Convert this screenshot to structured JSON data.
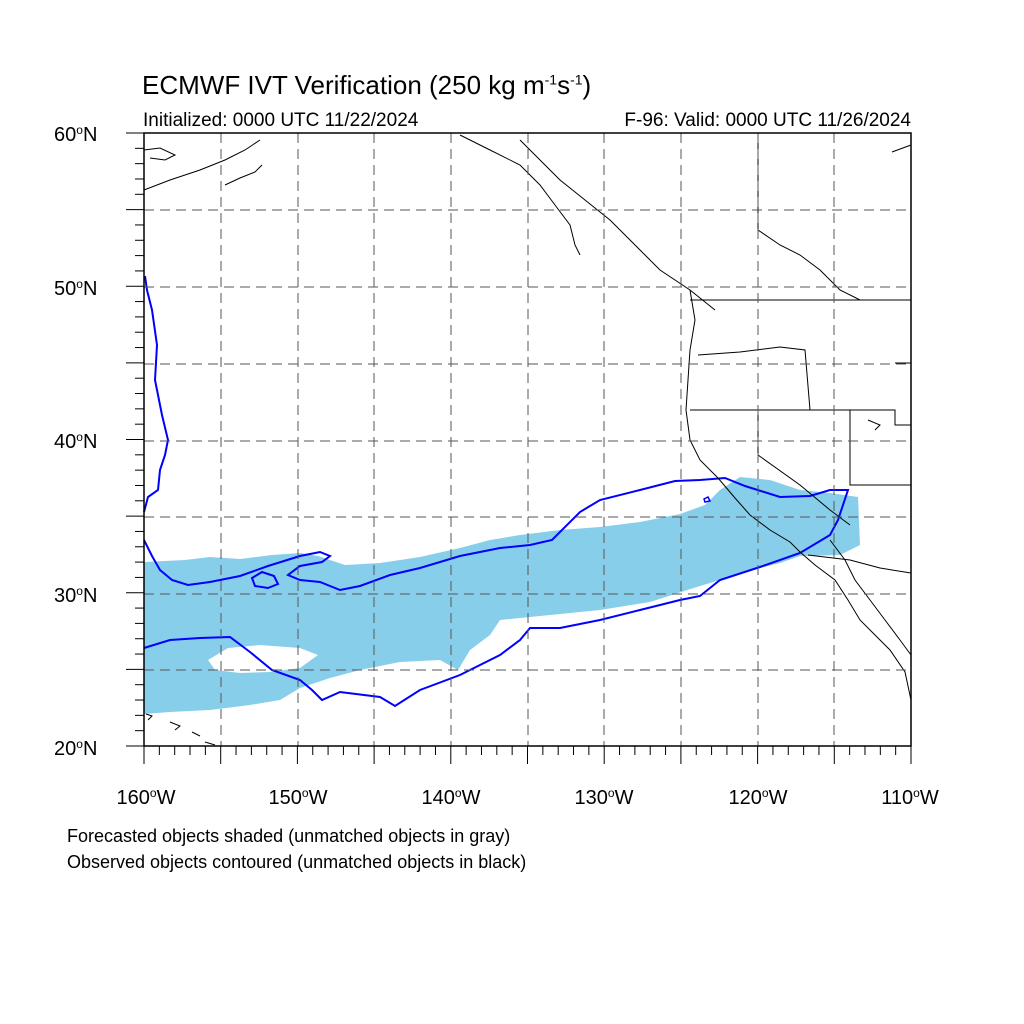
{
  "title": {
    "main": "ECMWF IVT Verification (250 kg m",
    "sup1": "-1",
    "mid": "s",
    "sup2": "-1",
    "end": ")"
  },
  "initialized": "Initialized: 0000 UTC 11/22/2024",
  "valid": "F-96: Valid: 0000 UTC 11/26/2024",
  "lat_labels": [
    "60",
    "50",
    "40",
    "30",
    "20"
  ],
  "lat_suffix": "N",
  "lon_labels": [
    "160",
    "150",
    "140",
    "130",
    "120",
    "110"
  ],
  "lon_suffix": "W",
  "deg_symbol": "o",
  "caption_forecast": "Forecasted objects shaded (unmatched objects in gray)",
  "caption_observed": "Observed objects contoured (unmatched objects in black)",
  "colors": {
    "forecast_fill": "#87ceeb",
    "observed_contour": "#0000ff",
    "coast": "#000000",
    "grid": "#555555"
  }
}
